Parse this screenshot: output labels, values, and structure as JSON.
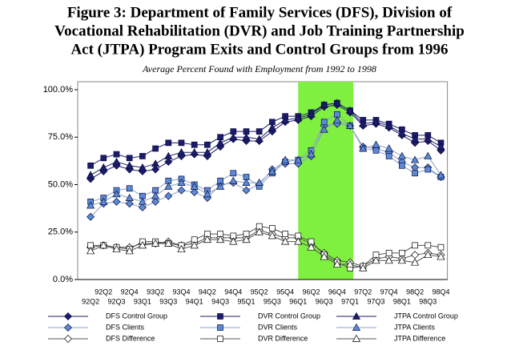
{
  "chart_data": {
    "type": "line",
    "title": [
      "Figure 3:  Department of Family Services (DFS), Division of",
      "Vocational Rehabilitation (DVR) and Job Training Partnership",
      "Act (JTPA) Program Exits and Control Groups from 1996"
    ],
    "subtitle": "Average Percent Found with Employment from 1992 to 1998",
    "categories": [
      "92Q2",
      "92Q2",
      "92Q3",
      "92Q4",
      "93Q1",
      "93Q2",
      "93Q3",
      "93Q4",
      "94Q1",
      "94Q2",
      "94Q3",
      "94Q4",
      "95Q1",
      "95Q2",
      "95Q3",
      "95Q4",
      "96Q1",
      "96Q2",
      "96Q3",
      "96Q4",
      "97Q1",
      "97Q2",
      "97Q3",
      "97Q4",
      "98Q1",
      "98Q2",
      "98Q3",
      "98Q4"
    ],
    "ylim": [
      0,
      100
    ],
    "yticks": [
      {
        "value": 0,
        "label": "0.0%"
      },
      {
        "value": 25,
        "label": "25.0%"
      },
      {
        "value": 50,
        "label": "50.0%"
      },
      {
        "value": 75,
        "label": "75.0%"
      },
      {
        "value": 100,
        "label": "100.0%"
      }
    ],
    "highlight_range": [
      "96Q1",
      "97Q1"
    ],
    "highlight_color": "#80f040",
    "series": [
      {
        "name": "DFS Control Group",
        "color": "#1c1c6c",
        "fill": "#1c1c6c",
        "marker": "diamond",
        "values": [
          53,
          57,
          60,
          58,
          57,
          58,
          62,
          65,
          66,
          65,
          70,
          74,
          73,
          73,
          78,
          83,
          84,
          86,
          91,
          92,
          88,
          81,
          82,
          80,
          76,
          72,
          73,
          68
        ]
      },
      {
        "name": "DVR Control Group",
        "color": "#1c1c6c",
        "fill": "#1c1c6c",
        "marker": "square",
        "values": [
          60,
          64,
          66,
          64,
          65,
          69,
          72,
          72,
          71,
          71,
          75,
          78,
          78,
          78,
          83,
          86,
          86,
          88,
          92,
          93,
          89,
          84,
          84,
          82,
          79,
          76,
          76,
          72
        ]
      },
      {
        "name": "JTPA Control Group",
        "color": "#1c1c6c",
        "fill": "#1c1c6c",
        "marker": "triangle",
        "values": [
          55,
          59,
          62,
          60,
          59,
          61,
          65,
          67,
          67,
          67,
          72,
          75,
          75,
          74,
          80,
          84,
          85,
          87,
          92,
          93,
          89,
          82,
          83,
          81,
          77,
          74,
          74,
          70
        ]
      },
      {
        "name": "DFS Clients",
        "color": "#8aa0c8",
        "fill": "#5b8bd6",
        "marker": "diamond",
        "values": [
          33,
          40,
          41,
          40,
          38,
          41,
          44,
          47,
          46,
          43,
          50,
          51,
          47,
          50,
          58,
          61,
          61,
          65,
          81,
          82,
          81,
          70,
          69,
          67,
          62,
          59,
          59,
          54
        ]
      },
      {
        "name": "DVR Clients",
        "color": "#8aa0c8",
        "fill": "#5b8bd6",
        "marker": "square",
        "values": [
          41,
          43,
          47,
          48,
          44,
          47,
          52,
          53,
          50,
          47,
          52,
          56,
          54,
          49,
          56,
          62,
          63,
          68,
          83,
          87,
          81,
          69,
          68,
          65,
          60,
          56,
          58,
          54
        ]
      },
      {
        "name": "JTPA Clients",
        "color": "#8aa0c8",
        "fill": "#5b8bd6",
        "marker": "triangle",
        "values": [
          39,
          41,
          45,
          43,
          41,
          44,
          49,
          51,
          49,
          45,
          49,
          52,
          51,
          51,
          57,
          63,
          63,
          66,
          79,
          84,
          81,
          69,
          71,
          69,
          65,
          63,
          65,
          55
        ]
      },
      {
        "name": "DFS Difference",
        "color": "#555555",
        "fill": "#ffffff",
        "marker": "diamond",
        "values": [
          17,
          18,
          17,
          17,
          19,
          19,
          20,
          18,
          19,
          22,
          22,
          22,
          22,
          26,
          24,
          22,
          22,
          19,
          14,
          10,
          9,
          7,
          11,
          12,
          11,
          13,
          14,
          13
        ]
      },
      {
        "name": "DVR Difference",
        "color": "#555555",
        "fill": "#ffffff",
        "marker": "square",
        "values": [
          18,
          18,
          17,
          16,
          20,
          20,
          19,
          18,
          21,
          24,
          24,
          23,
          24,
          28,
          27,
          24,
          23,
          20,
          13,
          9,
          6,
          7,
          13,
          14,
          14,
          18,
          18,
          17
        ]
      },
      {
        "name": "JTPA Difference",
        "color": "#555555",
        "fill": "#ffffff",
        "marker": "triangle",
        "values": [
          15,
          18,
          16,
          15,
          18,
          19,
          19,
          16,
          18,
          21,
          21,
          20,
          21,
          25,
          23,
          20,
          20,
          17,
          12,
          8,
          8,
          6,
          10,
          10,
          10,
          9,
          13,
          12
        ]
      }
    ]
  }
}
